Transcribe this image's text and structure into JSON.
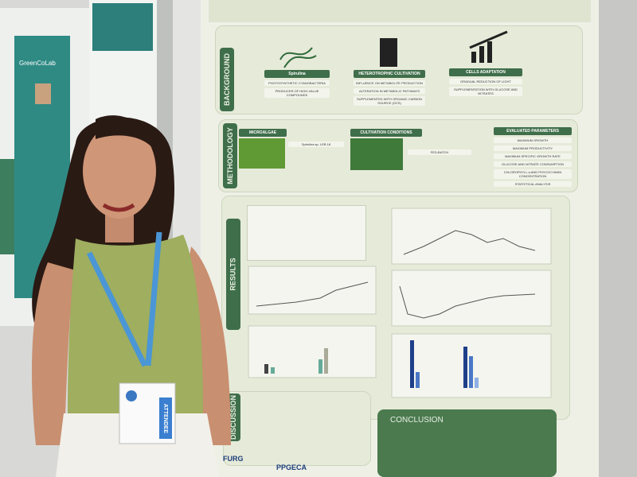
{
  "left_poster": {
    "title": "GreenCoLab"
  },
  "badge": {
    "label": "ATTENDEE"
  },
  "poster": {
    "background": {
      "label": "BACKGROUND",
      "columns": [
        {
          "title": "Spirulina",
          "points": [
            "PHOTOSYNTHETIC CYANOBACTERIA",
            "PRODUCER OF HIGH-VALUE COMPOUNDS"
          ]
        },
        {
          "title": "HETEROTROPHIC CULTIVATION",
          "points": [
            "INFLUENCE ON METABOLITE PRODUCTION",
            "ALTERATION IN METABOLIC PATHWAYS",
            "SUPPLEMENTED WITH ORGANIC CARBON SOURCE (OCS)"
          ]
        },
        {
          "title": "CELLS ADAPTATION",
          "points": [
            "GRADUAL REDUCTION OF LIGHT",
            "SUPPLEMENTATION WITH GLUCOSE AND NITRATES"
          ]
        }
      ]
    },
    "methodology": {
      "label": "METHODOLOGY",
      "columns": [
        {
          "title": "MICROALGAE",
          "points": [
            "Spirulina sp. LEB 18"
          ]
        },
        {
          "title": "CULTIVATION CONDITIONS",
          "points": [
            "FED-BATCH"
          ]
        },
        {
          "title": "EVALUATED PARAMETERS",
          "points": [
            "MAXIMUM GROWTH",
            "MAXIMUM PRODUCTIVITY",
            "MAXIMUM SPECIFIC GROWTH RATE",
            "GLUCOSE AND NITRATE CONSUMPTION",
            "CHLOROPHYLL a AND PHYCOCYANIN CONCENTRATION",
            "STATISTICAL ANALYSIS"
          ]
        }
      ]
    },
    "results": {
      "label": "RESULTS"
    },
    "discussion": {
      "label": "DISCUSSION"
    },
    "conclusion": {
      "label": "CONCLUSION"
    },
    "logos": [
      "FURG",
      "PPGECA"
    ]
  }
}
